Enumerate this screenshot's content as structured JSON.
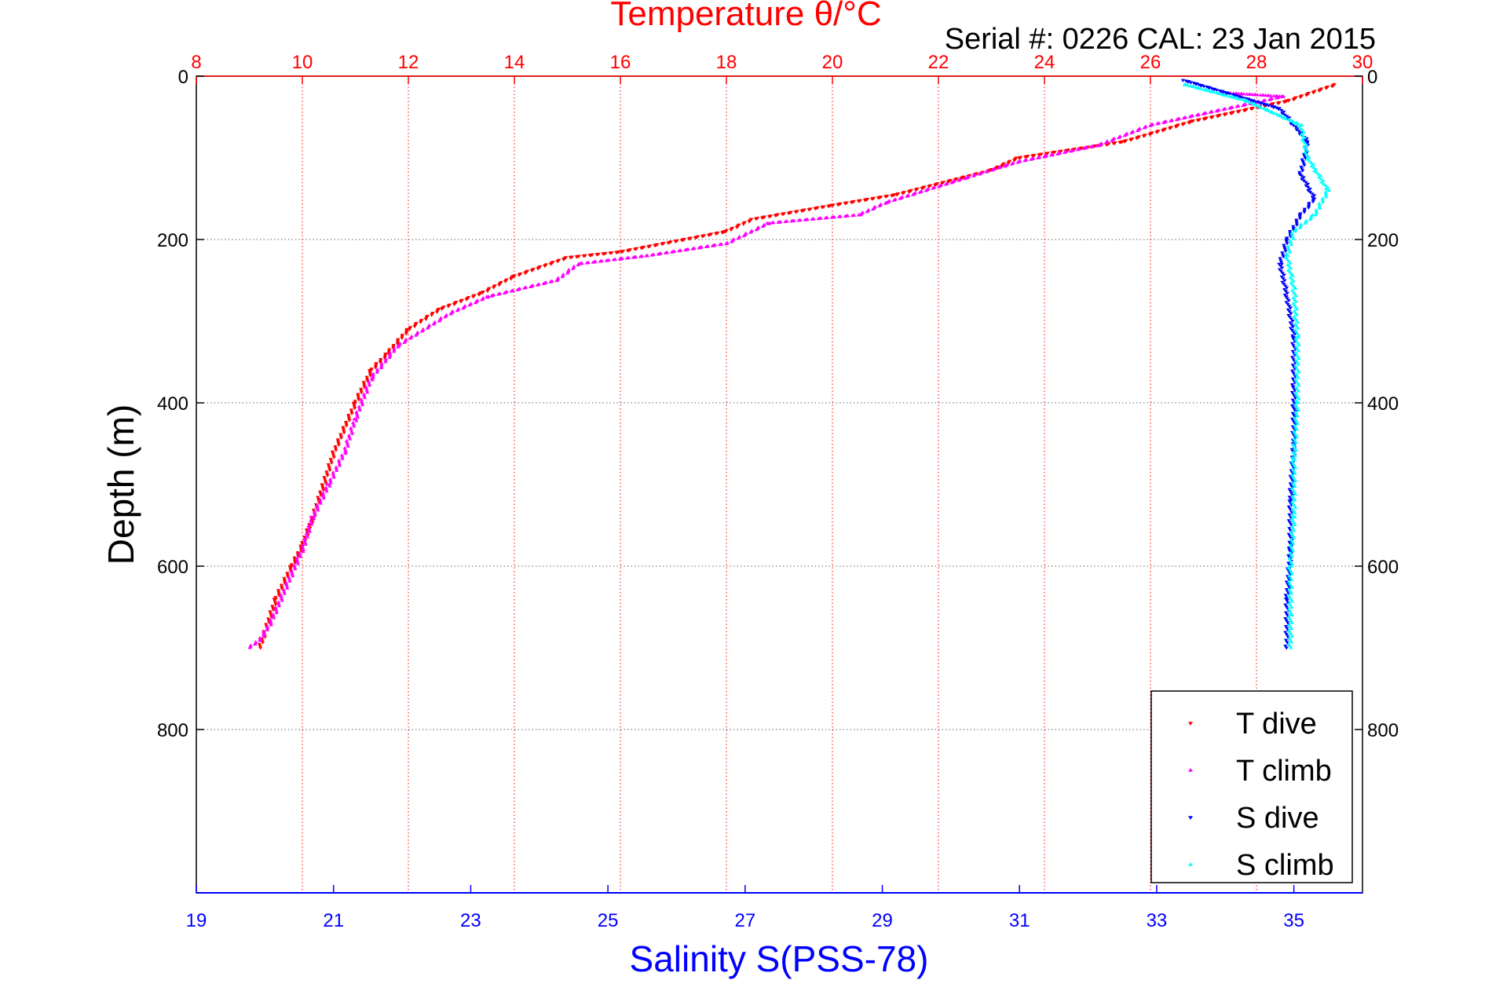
{
  "chart_data": {
    "type": "scatter",
    "title": "Temperature θ/°C",
    "subtitle": "Serial #: 0226  CAL: 23 Jan 2015",
    "xlabel_top": "Temperature θ/°C",
    "xlabel_bottom": "Salinity S(PSS-78)",
    "ylabel": "Depth (m)",
    "temperature_axis": {
      "range": [
        8,
        30
      ],
      "ticks": [
        "8",
        "10",
        "12",
        "14",
        "16",
        "18",
        "20",
        "22",
        "24",
        "26",
        "28",
        "30"
      ],
      "color": "#ff0000",
      "grid": true
    },
    "salinity_axis": {
      "range": [
        19,
        36
      ],
      "ticks": [
        "19",
        "21",
        "23",
        "25",
        "27",
        "29",
        "31",
        "33",
        "35"
      ],
      "color": "#0000ff"
    },
    "depth_axis": {
      "range": [
        0,
        1000
      ],
      "reversed": true,
      "ticks": [
        "0",
        "200",
        "400",
        "600",
        "800"
      ],
      "grid": true
    },
    "legend_position": "bottom-right",
    "series": [
      {
        "name": "T dive",
        "axis": "temperature",
        "color": "#ff0000",
        "x": [
          29.5,
          28.6,
          26.8,
          25.5,
          23.5,
          23.0,
          21.2,
          20.0,
          18.5,
          18.0,
          16.0,
          15.0,
          14.0,
          13.4,
          12.6,
          12.0,
          11.6,
          11.3,
          11.0,
          10.8,
          10.6,
          10.4,
          10.2,
          10.0,
          9.8,
          9.5,
          9.3,
          9.2
        ],
        "y": [
          10,
          30,
          55,
          80,
          100,
          115,
          145,
          158,
          175,
          190,
          215,
          222,
          245,
          265,
          285,
          310,
          340,
          360,
          400,
          430,
          460,
          500,
          540,
          575,
          600,
          640,
          680,
          700
        ]
      },
      {
        "name": "T climb",
        "axis": "temperature",
        "color": "#ff00ff",
        "x": [
          27.3,
          28.5,
          26.0,
          25.0,
          23.5,
          22.5,
          21.0,
          20.5,
          18.8,
          18.0,
          16.5,
          15.2,
          14.8,
          13.5,
          12.8,
          11.8,
          11.3,
          11.0,
          10.8,
          10.5,
          10.2,
          10.0,
          9.8,
          9.6,
          9.4,
          9.2,
          9.0
        ],
        "y": [
          20,
          25,
          60,
          85,
          105,
          125,
          155,
          170,
          180,
          205,
          220,
          230,
          250,
          270,
          290,
          330,
          370,
          420,
          460,
          500,
          540,
          580,
          610,
          640,
          670,
          690,
          700
        ]
      },
      {
        "name": "S dive",
        "axis": "salinity",
        "color": "#0000ff",
        "x": [
          33.4,
          34.8,
          35.2,
          35.1,
          35.3,
          35.1,
          34.9,
          34.8,
          34.9,
          35.0,
          35.0,
          35.0,
          34.95,
          34.95,
          34.9,
          34.9
        ],
        "y": [
          5,
          40,
          80,
          120,
          150,
          170,
          200,
          230,
          270,
          320,
          380,
          450,
          520,
          580,
          640,
          700
        ]
      },
      {
        "name": "S climb",
        "axis": "salinity",
        "color": "#00ffff",
        "x": [
          33.4,
          34.3,
          35.1,
          35.2,
          35.5,
          35.3,
          35.0,
          34.9,
          35.0,
          35.05,
          35.05,
          35.0,
          35.0,
          34.95,
          34.95,
          34.95
        ],
        "y": [
          10,
          30,
          60,
          100,
          140,
          170,
          190,
          220,
          260,
          320,
          400,
          470,
          540,
          600,
          660,
          700
        ]
      }
    ]
  }
}
